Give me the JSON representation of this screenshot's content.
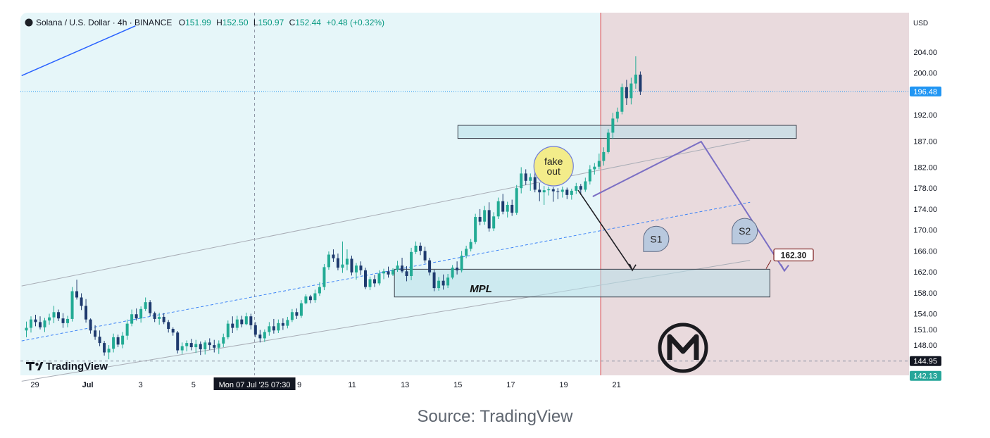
{
  "header": {
    "symbol": "Solana / U.S. Dollar · 4h · BINANCE",
    "o_label": "O",
    "o_value": "151.99",
    "h_label": "H",
    "h_value": "152.50",
    "l_label": "L",
    "l_value": "150.97",
    "c_label": "C",
    "c_value": "152.44",
    "change": "+0.48 (+0.32%)"
  },
  "brand": {
    "logo_text": "TradingView"
  },
  "axis_currency": "USD",
  "crosshair_label": "Mon 07 Jul '25  07:30",
  "caption": "Source: TradingView",
  "colors": {
    "up": "#22ab94",
    "down": "#1e3a6e",
    "channel_fill": "#e6f6f9",
    "short_zone": "#e9dadd",
    "zone_fill": "#b8e0ea",
    "current_price_tag": "#2196f3",
    "low_tag": "#26a69a",
    "projection": "#7b6fc4"
  },
  "chart_data": {
    "type": "candlestick",
    "title": "Solana / U.S. Dollar · 4h · BINANCE",
    "y_axis": {
      "ylim": [
        139,
        209
      ],
      "ticks": [
        "204.00",
        "200.00",
        "192.00",
        "187.00",
        "182.00",
        "178.00",
        "174.00",
        "170.00",
        "166.00",
        "162.00",
        "158.00",
        "154.00",
        "151.00",
        "148.00"
      ],
      "tick_values": [
        204,
        200,
        192,
        187,
        182,
        178,
        174,
        170,
        166,
        162,
        158,
        154,
        151,
        148
      ],
      "unit": "USD"
    },
    "x_axis": {
      "labels": [
        "29",
        "Jul",
        "3",
        "5",
        "9",
        "11",
        "13",
        "15",
        "17",
        "19",
        "21"
      ],
      "label_days": [
        -2,
        0,
        2,
        4,
        8,
        10,
        12,
        14,
        16,
        18,
        20
      ],
      "crosshair_day": 6.31
    },
    "price_tags": [
      {
        "label": "196.48",
        "value": 196.48,
        "role": "current"
      },
      {
        "label": "144.95",
        "value": 144.95,
        "role": "crosshair"
      },
      {
        "label": "142.13",
        "value": 142.13,
        "role": "low"
      }
    ],
    "zones": [
      {
        "name": "supply-zone",
        "day_start": 14.0,
        "day_end": 26.8,
        "low": 187.5,
        "high": 190.0
      },
      {
        "name": "MPL",
        "label": "MPL",
        "day_start": 11.6,
        "day_end": 25.8,
        "low": 157.2,
        "high": 162.5
      }
    ],
    "annotations": [
      {
        "text": "fake",
        "text2": "out",
        "day": 17.62,
        "price": 182.2
      },
      {
        "text": "S1",
        "day": 21.5,
        "price": 168.3
      },
      {
        "text": "S2",
        "day": 24.85,
        "price": 169.8
      },
      {
        "text": "162.30",
        "day": 25.95,
        "price": 165.3
      }
    ],
    "projections": [
      {
        "name": "s1-path",
        "points": [
          [
            18.55,
            177.6
          ],
          [
            20.6,
            162.3
          ]
        ]
      },
      {
        "name": "s2-path",
        "points": [
          [
            19.1,
            176.4
          ],
          [
            23.2,
            186.9
          ],
          [
            26.35,
            162.2
          ]
        ]
      }
    ],
    "levels": {
      "current": 196.48,
      "crosshair": 144.95
    },
    "channel": {
      "upper": [
        [
          -2.5,
          159.3
        ],
        [
          25.05,
          187.2
        ]
      ],
      "middle": [
        [
          -2.5,
          148.8
        ],
        [
          25.05,
          175.3
        ]
      ],
      "lower": [
        [
          -2.5,
          141.1
        ],
        [
          25.05,
          164.2
        ]
      ]
    },
    "trendline": [
      [
        -2.5,
        199.5
      ],
      [
        1.8,
        209.0
      ]
    ],
    "short_zone_start_day": 19.4,
    "candles_open": 150.8,
    "candles": [
      [
        150.8,
        152.5,
        149.5,
        151.3
      ],
      [
        151.3,
        153.5,
        150.4,
        152.9
      ],
      [
        152.9,
        153.8,
        151.6,
        152.4
      ],
      [
        152.4,
        153.5,
        151.0,
        151.4
      ],
      [
        151.4,
        153.2,
        150.5,
        152.7
      ],
      [
        152.7,
        154.0,
        151.9,
        153.3
      ],
      [
        153.3,
        155.5,
        152.2,
        154.3
      ],
      [
        154.3,
        154.8,
        152.6,
        153.1
      ],
      [
        153.1,
        154.1,
        151.3,
        152.2
      ],
      [
        152.2,
        153.6,
        151.4,
        153.0
      ],
      [
        153.0,
        159.1,
        152.5,
        158.3
      ],
      [
        158.3,
        160.5,
        156.7,
        157.1
      ],
      [
        157.1,
        157.9,
        154.7,
        155.5
      ],
      [
        155.5,
        156.8,
        152.3,
        152.9
      ],
      [
        152.9,
        153.1,
        150.2,
        150.8
      ],
      [
        150.8,
        151.8,
        149.0,
        149.6
      ],
      [
        149.6,
        150.8,
        147.8,
        148.4
      ],
      [
        148.4,
        148.8,
        146.0,
        146.6
      ],
      [
        146.6,
        148.0,
        145.3,
        147.3
      ],
      [
        147.3,
        150.2,
        146.6,
        149.5
      ],
      [
        149.5,
        150.0,
        147.6,
        148.1
      ],
      [
        148.1,
        150.5,
        147.4,
        149.8
      ],
      [
        149.8,
        152.9,
        149.0,
        152.1
      ],
      [
        152.1,
        154.8,
        151.6,
        153.9
      ],
      [
        153.9,
        155.0,
        152.7,
        153.1
      ],
      [
        153.1,
        155.4,
        152.3,
        154.9
      ],
      [
        154.9,
        157.1,
        154.5,
        156.2
      ],
      [
        156.2,
        156.6,
        153.5,
        154.1
      ],
      [
        154.1,
        154.4,
        152.4,
        153.0
      ],
      [
        153.0,
        154.2,
        151.9,
        153.4
      ],
      [
        153.4,
        154.1,
        152.0,
        152.4
      ],
      [
        152.4,
        152.8,
        150.4,
        151.1
      ],
      [
        151.1,
        151.4,
        149.8,
        150.4
      ],
      [
        150.4,
        150.7,
        146.4,
        147.0
      ],
      [
        147.0,
        148.5,
        146.3,
        147.8
      ],
      [
        147.8,
        148.9,
        146.8,
        148.4
      ],
      [
        148.4,
        149.2,
        147.0,
        147.6
      ],
      [
        147.6,
        149.0,
        146.5,
        148.2
      ],
      [
        148.2,
        148.7,
        146.1,
        147.2
      ],
      [
        147.2,
        148.9,
        146.2,
        148.5
      ],
      [
        148.5,
        149.3,
        147.1,
        148.0
      ],
      [
        148.0,
        149.0,
        146.6,
        147.5
      ],
      [
        147.5,
        148.9,
        146.3,
        148.3
      ],
      [
        148.3,
        150.2,
        147.6,
        149.5
      ],
      [
        149.5,
        152.7,
        149.1,
        152.1
      ],
      [
        152.1,
        153.5,
        150.3,
        151.3
      ],
      [
        151.3,
        153.6,
        150.8,
        152.9
      ],
      [
        152.9,
        153.6,
        151.4,
        152.0
      ],
      [
        152.0,
        154.2,
        151.8,
        153.5
      ],
      [
        153.5,
        154.0,
        151.0,
        151.8
      ],
      [
        151.8,
        152.4,
        149.5,
        150.0
      ],
      [
        150.0,
        150.9,
        148.5,
        149.3
      ],
      [
        149.3,
        151.0,
        148.6,
        150.5
      ],
      [
        150.5,
        152.4,
        149.8,
        151.6
      ],
      [
        151.6,
        153.0,
        150.2,
        150.8
      ],
      [
        150.8,
        152.9,
        150.3,
        152.2
      ],
      [
        152.2,
        153.1,
        150.9,
        151.7
      ],
      [
        151.7,
        153.4,
        151.2,
        152.8
      ],
      [
        152.8,
        154.9,
        152.4,
        154.3
      ],
      [
        154.3,
        155.0,
        153.0,
        153.6
      ],
      [
        153.6,
        156.6,
        153.2,
        156.0
      ],
      [
        156.0,
        157.7,
        155.8,
        157.3
      ],
      [
        157.3,
        157.6,
        156.0,
        156.6
      ],
      [
        156.6,
        158.6,
        156.1,
        157.9
      ],
      [
        157.9,
        160.0,
        157.4,
        159.1
      ],
      [
        159.1,
        163.5,
        158.5,
        162.9
      ],
      [
        162.9,
        165.9,
        162.4,
        165.3
      ],
      [
        165.3,
        166.3,
        163.9,
        164.6
      ],
      [
        164.6,
        165.5,
        162.3,
        162.8
      ],
      [
        162.8,
        167.8,
        161.8,
        163.4
      ],
      [
        163.4,
        166.3,
        162.3,
        164.5
      ],
      [
        164.5,
        165.1,
        161.3,
        161.9
      ],
      [
        161.9,
        163.7,
        160.5,
        163.2
      ],
      [
        163.2,
        164.0,
        161.4,
        162.3
      ],
      [
        162.3,
        162.8,
        158.7,
        159.1
      ],
      [
        159.1,
        161.1,
        158.5,
        160.6
      ],
      [
        160.6,
        161.4,
        159.1,
        159.8
      ],
      [
        159.8,
        162.3,
        159.4,
        161.7
      ],
      [
        161.7,
        162.6,
        160.6,
        162.1
      ],
      [
        162.1,
        163.0,
        160.9,
        161.5
      ],
      [
        161.5,
        162.7,
        161.2,
        162.4
      ],
      [
        162.4,
        164.1,
        162.0,
        163.2
      ],
      [
        163.2,
        164.7,
        161.8,
        162.1
      ],
      [
        162.1,
        163.1,
        160.2,
        161.2
      ],
      [
        161.2,
        166.6,
        160.4,
        165.8
      ],
      [
        165.8,
        167.8,
        165.4,
        167.0
      ],
      [
        167.0,
        167.6,
        165.2,
        166.0
      ],
      [
        166.0,
        166.8,
        163.7,
        164.2
      ],
      [
        164.2,
        164.7,
        161.3,
        161.9
      ],
      [
        161.9,
        162.4,
        158.3,
        158.9
      ],
      [
        158.9,
        161.0,
        158.4,
        160.3
      ],
      [
        160.3,
        161.5,
        158.6,
        159.4
      ],
      [
        159.4,
        161.6,
        158.9,
        160.9
      ],
      [
        160.9,
        163.3,
        160.6,
        162.8
      ],
      [
        162.8,
        164.0,
        161.5,
        162.3
      ],
      [
        162.3,
        166.0,
        161.9,
        165.1
      ],
      [
        165.1,
        167.0,
        164.6,
        166.4
      ],
      [
        166.4,
        168.3,
        165.9,
        167.7
      ],
      [
        167.7,
        173.1,
        167.3,
        172.5
      ],
      [
        172.5,
        174.0,
        170.9,
        171.6
      ],
      [
        171.6,
        174.6,
        171.0,
        173.8
      ],
      [
        173.8,
        175.3,
        169.7,
        170.3
      ],
      [
        170.3,
        173.4,
        169.8,
        172.6
      ],
      [
        172.6,
        176.2,
        172.1,
        175.5
      ],
      [
        175.5,
        176.9,
        173.0,
        173.5
      ],
      [
        173.5,
        175.4,
        172.4,
        174.8
      ],
      [
        174.8,
        175.8,
        172.7,
        173.3
      ],
      [
        173.3,
        178.6,
        172.9,
        178.0
      ],
      [
        178.0,
        182.0,
        177.0,
        180.8
      ],
      [
        180.8,
        181.6,
        178.6,
        179.4
      ],
      [
        179.4,
        180.8,
        177.5,
        180.1
      ],
      [
        180.1,
        181.0,
        177.2,
        177.7
      ],
      [
        177.7,
        179.0,
        175.5,
        177.2
      ],
      [
        177.2,
        178.4,
        174.8,
        177.6
      ],
      [
        177.6,
        178.3,
        176.6,
        177.8
      ],
      [
        177.8,
        178.2,
        175.4,
        177.4
      ],
      [
        177.4,
        178.0,
        175.9,
        177.3
      ],
      [
        177.3,
        178.3,
        176.2,
        177.7
      ],
      [
        177.7,
        178.1,
        175.9,
        176.7
      ],
      [
        176.7,
        177.9,
        175.8,
        177.5
      ],
      [
        177.5,
        179.0,
        176.9,
        178.4
      ],
      [
        178.4,
        178.8,
        176.7,
        177.7
      ],
      [
        177.7,
        180.0,
        177.3,
        179.3
      ],
      [
        179.3,
        182.4,
        178.7,
        181.6
      ],
      [
        181.6,
        182.8,
        180.6,
        182.1
      ],
      [
        182.1,
        184.6,
        181.6,
        183.2
      ],
      [
        183.2,
        185.8,
        182.3,
        184.9
      ],
      [
        184.9,
        189.3,
        184.6,
        188.6
      ],
      [
        188.6,
        192.4,
        187.4,
        191.3
      ],
      [
        191.3,
        193.4,
        190.6,
        192.6
      ],
      [
        192.6,
        198.0,
        192.1,
        197.3
      ],
      [
        197.3,
        198.7,
        193.9,
        195.2
      ],
      [
        195.2,
        199.1,
        194.0,
        198.0
      ],
      [
        198.0,
        203.2,
        197.0,
        199.7
      ],
      [
        199.7,
        200.3,
        195.8,
        196.48
      ]
    ]
  }
}
